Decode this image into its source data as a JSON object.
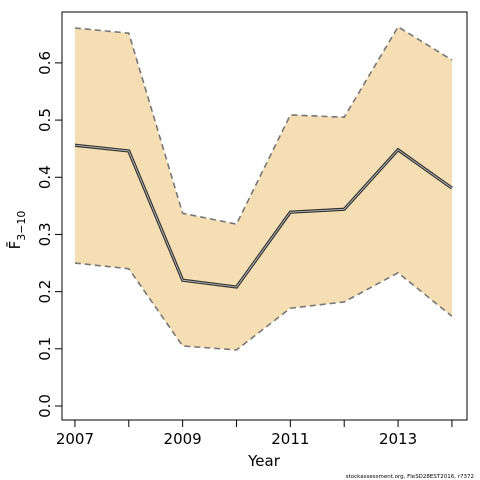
{
  "chart_data": {
    "type": "band-line",
    "xlabel": "Year",
    "ylabel": "F̄",
    "ylabel_sub": "3−10",
    "footer": "stockassessment.org, FleSD28EST2016, r7372",
    "x": [
      2007,
      2008,
      2009,
      2010,
      2011,
      2012,
      2013,
      2014
    ],
    "values": [
      0.456,
      0.446,
      0.22,
      0.208,
      0.339,
      0.344,
      0.448,
      0.381
    ],
    "upper": [
      0.661,
      0.652,
      0.337,
      0.318,
      0.509,
      0.505,
      0.663,
      0.605
    ],
    "lower": [
      0.25,
      0.24,
      0.105,
      0.098,
      0.171,
      0.182,
      0.233,
      0.157
    ],
    "band_color": "#f5deb3",
    "bound_color": "#777777",
    "line_color": "#333333",
    "xlim": [
      2006.76,
      2014.28
    ],
    "ylim": [
      -0.0245,
      0.689
    ],
    "xticks": [
      2007,
      2009,
      2011,
      2013
    ],
    "xminor_ticks": [
      2008,
      2010,
      2012,
      2014
    ],
    "yticks": [
      {
        "value": 0,
        "label": "0.0"
      },
      0.1,
      0.2,
      0.3,
      0.4,
      0.5,
      0.6
    ]
  }
}
